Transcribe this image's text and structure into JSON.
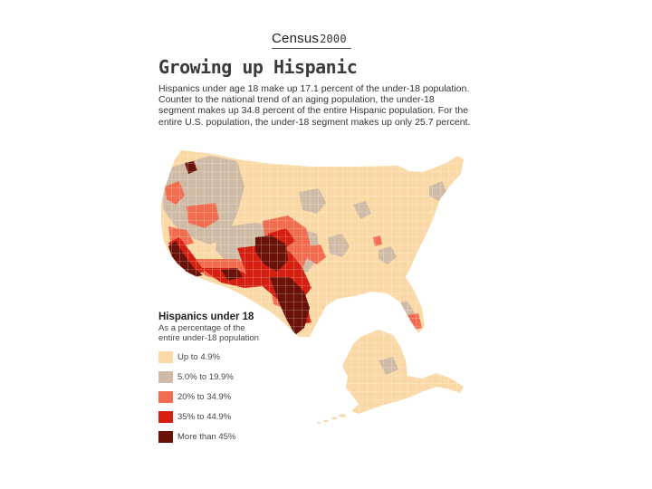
{
  "header": {
    "census_word": "Census",
    "census_year": "2000"
  },
  "map": {
    "title": "Growing up Hispanic",
    "description": "Hispanics under age 18 make up 17.1 percent of the under-18 population. Counter to the national trend of an aging population, the under-18 segment makes up 34.8 percent of the entire Hispanic population. For the entire U.S. population, the under-18 segment makes up only 25.7 percent."
  },
  "legend": {
    "title": "Hispanics under 18",
    "subtitle": "As a percentage of the entire under-18 population",
    "items": [
      {
        "label": "Up to 4.9%",
        "color": "#fbd9a6"
      },
      {
        "label": "5.0% to 19.9%",
        "color": "#cfbba5"
      },
      {
        "label": "20% to 34.9%",
        "color": "#f26d4f"
      },
      {
        "label": "35% to 44.9%",
        "color": "#d51f10"
      },
      {
        "label": "More than 45%",
        "color": "#6b1208"
      }
    ]
  },
  "colors": {
    "base": "#fbd9a6",
    "county_line": "#ffffff"
  }
}
